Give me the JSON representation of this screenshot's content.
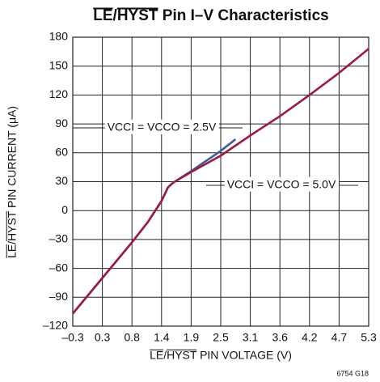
{
  "chart_data": {
    "type": "line",
    "title": "LE/HYST Pin I–V Characteristics",
    "xlabel": "LE/HYST PIN VOLTAGE (V)",
    "ylabel": "LE/HYST PIN CURRENT (μA)",
    "footnote": "6754 G18",
    "xlim": [
      -0.3,
      5.3
    ],
    "xticks": [
      {
        "value": -0.3,
        "label": "–0.3"
      },
      {
        "value": 0.26,
        "label": "0.3"
      },
      {
        "value": 0.82,
        "label": "0.8"
      },
      {
        "value": 1.38,
        "label": "1.4"
      },
      {
        "value": 1.94,
        "label": "1.9"
      },
      2.5,
      {
        "value": 3.06,
        "label": "3.1"
      },
      {
        "value": 3.62,
        "label": "3.6"
      },
      {
        "value": 4.18,
        "label": "4.2"
      },
      {
        "value": 4.74,
        "label": "4.7"
      },
      5.3
    ],
    "ylim": [
      -120,
      180
    ],
    "yticks": [
      {
        "value": -120,
        "label": "–120"
      },
      {
        "value": -90,
        "label": "–90"
      },
      {
        "value": -60,
        "label": "–60"
      },
      {
        "value": -30,
        "label": "–30"
      },
      0,
      30,
      60,
      90,
      120,
      150,
      180
    ],
    "grid": true,
    "series": [
      {
        "name": "VCCI = VCCO = 2.5V",
        "color": "#3b5ba5",
        "x": [
          -0.3,
          0.26,
          0.82,
          1.12,
          1.38,
          1.5,
          1.6,
          1.94,
          2.5,
          2.78
        ],
        "values": [
          -107,
          -70,
          -33,
          -12,
          10,
          24,
          29,
          41,
          62,
          74
        ]
      },
      {
        "name": "VCCI = VCCO = 5.0V",
        "color": "#9e1b3e",
        "x": [
          -0.3,
          0.26,
          0.82,
          1.12,
          1.38,
          1.5,
          1.6,
          1.94,
          2.5,
          3.06,
          3.62,
          4.18,
          4.74,
          5.3
        ],
        "values": [
          -107,
          -70,
          -33,
          -12,
          10,
          24,
          29,
          40,
          57,
          78,
          98,
          120,
          143,
          168
        ]
      }
    ]
  }
}
